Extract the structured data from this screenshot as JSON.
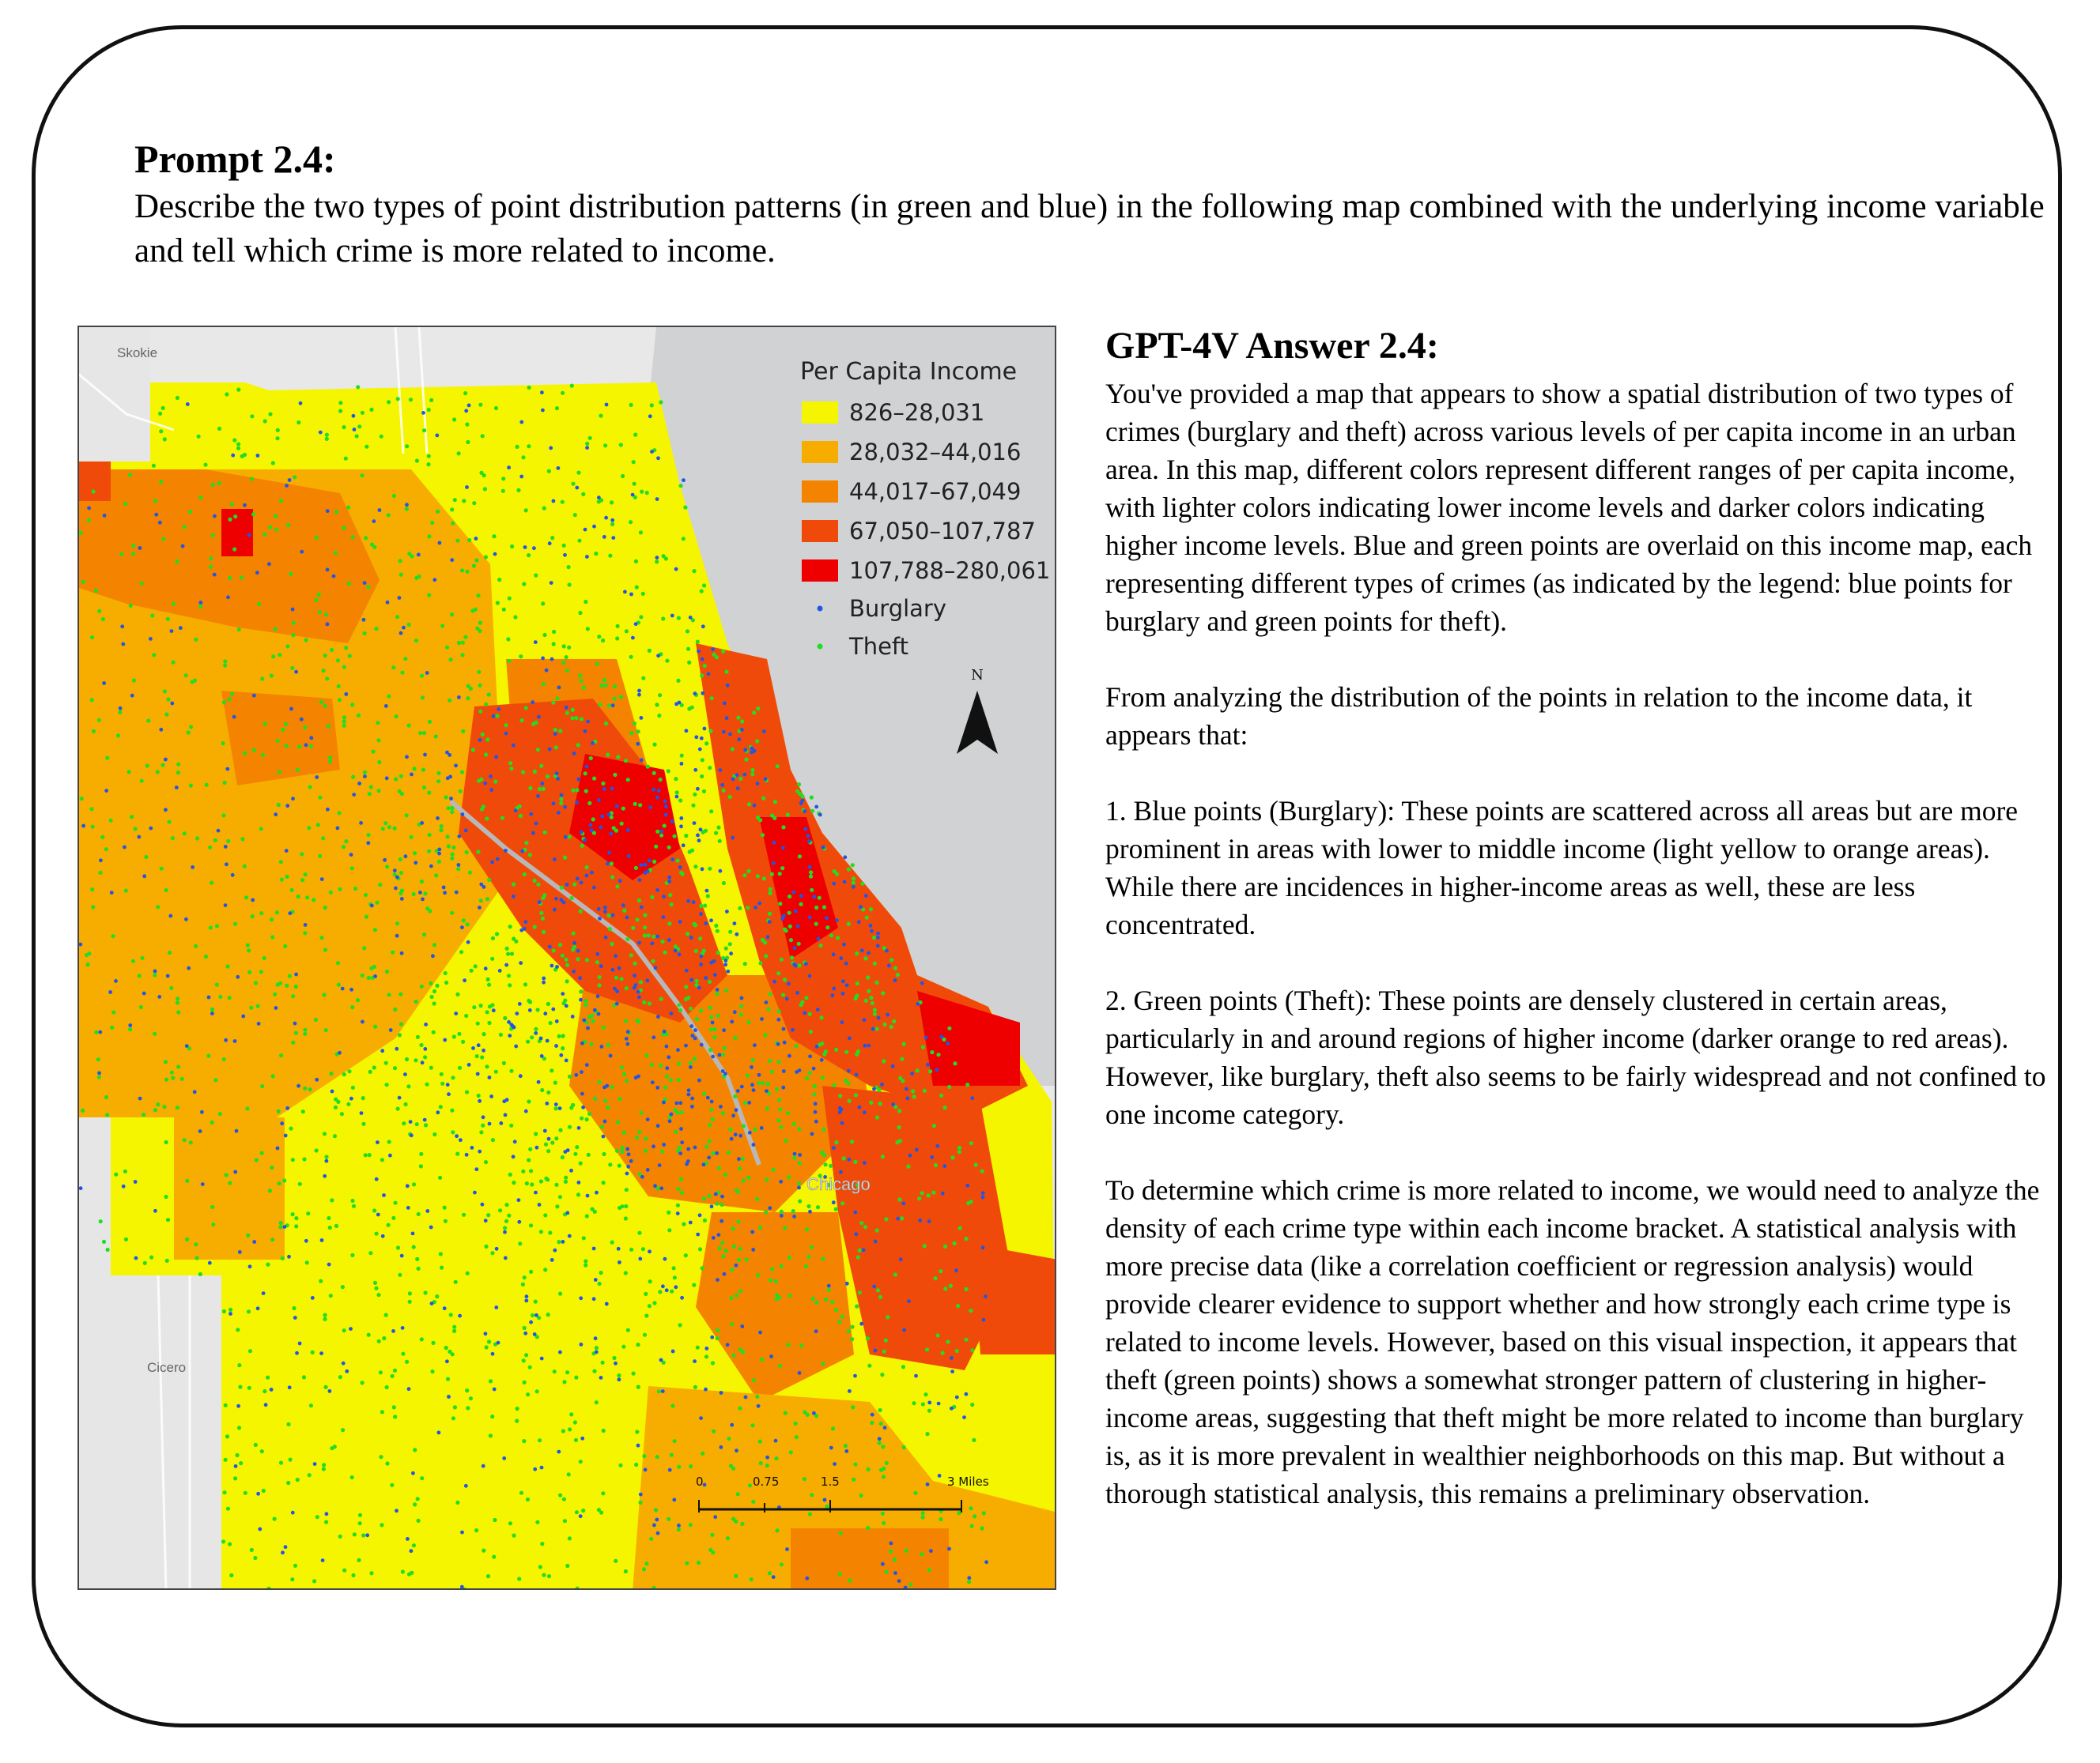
{
  "prompt": {
    "title": "Prompt 2.4:",
    "text": "Describe the two types of point distribution patterns (in green and blue) in the following map combined with the underlying income variable and tell which crime is more related to income."
  },
  "map": {
    "legend": {
      "title": "Per Capita Income",
      "classes": [
        {
          "label": "826–28,031",
          "color": "#f5f500"
        },
        {
          "label": "28,032–44,016",
          "color": "#f7ad00"
        },
        {
          "label": "44,017–67,049",
          "color": "#f48400"
        },
        {
          "label": "67,050–107,787",
          "color": "#f04a0a"
        },
        {
          "label": "107,788–280,061",
          "color": "#ee0000"
        }
      ],
      "points": [
        {
          "label": "Burglary",
          "color": "#2255e6"
        },
        {
          "label": "Theft",
          "color": "#22dd22"
        }
      ]
    },
    "place_labels": {
      "skokie": "Skokie",
      "cicero": "Cicero",
      "chicago": "Chicago"
    },
    "north_label": "N",
    "scale_bar": {
      "ticks": [
        "0",
        "0.75",
        "1.5",
        "3 Miles"
      ]
    },
    "colors": {
      "water": "#d0d2d4",
      "land_base": "#e8e8e8"
    }
  },
  "answer": {
    "title": "GPT-4V Answer 2.4:",
    "paragraphs": [
      "You've provided a map that appears to show a spatial distribution of two types of crimes (burglary and theft) across various levels of per capita income in an urban area. In this map, different colors represent different ranges of per capita income, with lighter colors indicating lower income levels and darker colors indicating higher income levels. Blue and green points are overlaid on this income map, each representing different types of crimes (as indicated by the legend: blue points for burglary and green points for theft).",
      "From analyzing the distribution of the points in relation to the income data, it appears that:",
      "1. Blue points (Burglary): These points are scattered across all areas but are more prominent in areas with lower to middle income (light yellow to orange areas). While there are incidences in higher-income areas as well, these are less concentrated.",
      "2. Green points (Theft): These points are densely clustered in certain areas, particularly in and around regions of higher income (darker orange to red areas). However, like burglary, theft also seems to be fairly widespread and not confined to one income category.",
      "To determine which crime is more related to income, we would need to analyze the density of each crime type within each income bracket. A statistical analysis with more precise data (like a correlation coefficient or regression analysis) would provide clearer evidence to support whether and how strongly each crime type is related to income levels. However, based on this visual inspection, it appears that theft (green points) shows a somewhat stronger pattern of clustering in higher-income areas, suggesting that theft might be more related to income than burglary is, as it is more prevalent in wealthier neighborhoods on this map. But without a thorough statistical analysis, this remains a preliminary observation."
    ]
  }
}
